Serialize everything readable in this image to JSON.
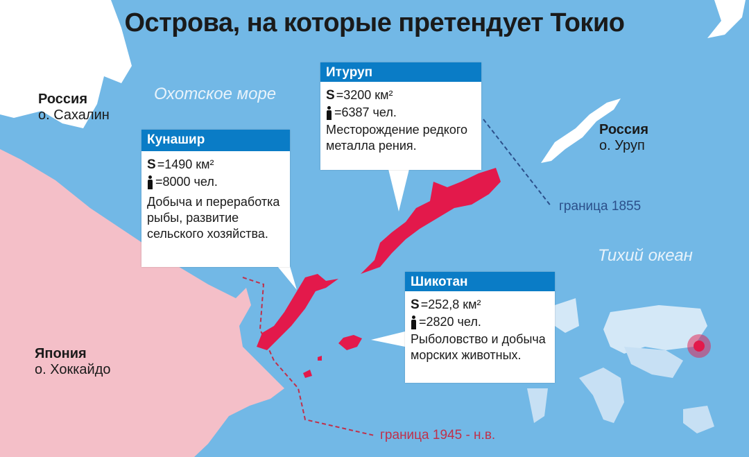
{
  "title": "Острова, на которые претендует Токио",
  "colors": {
    "sea": "#72b8e6",
    "japan": "#f4bfc8",
    "disputed_islands": "#e3194b",
    "header": "#0a7cc6",
    "border_1855": "#2b4f8a",
    "border_1945": "#c0304a"
  },
  "labels": {
    "russia_sakhalin": {
      "country": "Россия",
      "island": "о. Сахалин"
    },
    "russia_urup": {
      "country": "Россия",
      "island": "о. Уруп"
    },
    "japan_hokkaido": {
      "country": "Япония",
      "island": "о. Хоккайдо"
    },
    "sea_okhotsk": "Охотское море",
    "pacific": "Тихий океан",
    "border_1855": "граница 1855",
    "border_1945": "граница 1945 - н.в."
  },
  "islands": [
    {
      "name": "Кунашир",
      "area_symbol": "S",
      "area": "=1490 км²",
      "pop_icon": "person-icon",
      "population": "=8000 чел.",
      "description": "Добыча и переработка рыбы, развитие сельского хозяйства."
    },
    {
      "name": "Итуруп",
      "area_symbol": "S",
      "area": "=3200 км²",
      "pop_icon": "person-icon",
      "population": "=6387 чел.",
      "description": "Месторождение редкого металла рения."
    },
    {
      "name": "Шикотан",
      "area_symbol": "S",
      "area": "=252,8 км²",
      "pop_icon": "person-icon",
      "population": "=2820 чел.",
      "description": "Рыболовство и добыча морских животных."
    }
  ],
  "inset": {
    "marker": "japan-location-marker"
  }
}
